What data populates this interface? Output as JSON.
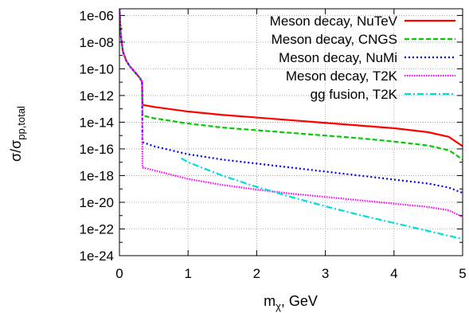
{
  "chart_data": {
    "type": "line",
    "title": "",
    "xlabel": "m",
    "xlabel_sub": "χ",
    "xlabel_suffix": ", GeV",
    "ylabel": "σ/σ",
    "ylabel_sub": "pp,total",
    "xlim": [
      0,
      5
    ],
    "ylim_log10": [
      -24,
      -5.5
    ],
    "y_scale": "log",
    "grid": true,
    "legend_position": "top-right",
    "x_ticks": [
      0,
      1,
      2,
      3,
      4,
      5
    ],
    "x_tick_labels": [
      "0",
      "1",
      "2",
      "3",
      "4",
      "5"
    ],
    "y_ticks_log10": [
      -6,
      -8,
      -10,
      -12,
      -14,
      -16,
      -18,
      -20,
      -22,
      -24
    ],
    "y_tick_labels": [
      "1e-06",
      "1e-08",
      "1e-10",
      "1e-12",
      "1e-14",
      "1e-16",
      "1e-18",
      "1e-20",
      "1e-22",
      "1e-24"
    ],
    "series": [
      {
        "name": "Meson decay, NuTeV",
        "color": "#ff0000",
        "dash": "solid",
        "x": [
          0,
          0.02,
          0.05,
          0.1,
          0.15,
          0.2,
          0.25,
          0.3,
          0.33,
          0.335,
          0.34,
          0.5,
          1,
          1.5,
          2,
          2.5,
          3,
          3.5,
          4,
          4.5,
          4.8,
          5
        ],
        "log10y": [
          -5.5,
          -7.5,
          -8.7,
          -9.4,
          -9.8,
          -10.1,
          -10.4,
          -10.7,
          -11.0,
          -12.5,
          -12.7,
          -12.85,
          -13.2,
          -13.45,
          -13.65,
          -13.85,
          -14.05,
          -14.25,
          -14.45,
          -14.75,
          -15.1,
          -15.8
        ]
      },
      {
        "name": "Meson decay, CNGS",
        "color": "#00cc00",
        "dash": "dashed",
        "x": [
          0,
          0.02,
          0.05,
          0.1,
          0.15,
          0.2,
          0.25,
          0.3,
          0.33,
          0.335,
          0.34,
          0.5,
          1,
          1.5,
          2,
          2.5,
          3,
          3.5,
          4,
          4.5,
          4.8,
          5
        ],
        "log10y": [
          -5.5,
          -7.5,
          -8.7,
          -9.4,
          -9.8,
          -10.1,
          -10.4,
          -10.7,
          -11.0,
          -13.3,
          -13.5,
          -13.7,
          -14.1,
          -14.4,
          -14.6,
          -14.8,
          -15.0,
          -15.2,
          -15.45,
          -15.75,
          -16.1,
          -16.8
        ]
      },
      {
        "name": "Meson decay, NuMi",
        "color": "#0000ff",
        "dash": "dotted",
        "x": [
          0,
          0.02,
          0.05,
          0.1,
          0.15,
          0.2,
          0.25,
          0.3,
          0.33,
          0.335,
          0.34,
          0.5,
          1,
          1.5,
          2,
          2.5,
          3,
          3.5,
          4,
          4.5,
          4.8,
          5
        ],
        "log10y": [
          -5.5,
          -7.5,
          -8.7,
          -9.4,
          -9.8,
          -10.1,
          -10.4,
          -10.7,
          -11.0,
          -15.3,
          -15.5,
          -15.8,
          -16.4,
          -16.8,
          -17.1,
          -17.4,
          -17.7,
          -18.0,
          -18.3,
          -18.6,
          -18.9,
          -19.3
        ]
      },
      {
        "name": "Meson decay, T2K",
        "color": "#ff00ff",
        "dash": "dotted-fine",
        "x": [
          0,
          0.02,
          0.05,
          0.1,
          0.15,
          0.2,
          0.25,
          0.3,
          0.33,
          0.335,
          0.34,
          0.5,
          1,
          1.5,
          2,
          2.5,
          3,
          3.5,
          4,
          4.5,
          4.8,
          5
        ],
        "log10y": [
          -5.5,
          -7.5,
          -8.7,
          -9.4,
          -9.8,
          -10.1,
          -10.4,
          -10.7,
          -11.0,
          -17.2,
          -17.4,
          -17.6,
          -18.25,
          -18.7,
          -19.05,
          -19.35,
          -19.6,
          -19.85,
          -20.1,
          -20.35,
          -20.6,
          -21.1
        ]
      },
      {
        "name": "gg fusion, T2K",
        "color": "#00dddd",
        "dash": "dash-dot",
        "x": [
          0.9,
          1,
          1.5,
          2,
          2.5,
          3,
          3.5,
          4,
          4.5,
          5
        ],
        "log10y": [
          -16.7,
          -17.0,
          -18.0,
          -18.85,
          -19.6,
          -20.3,
          -20.95,
          -21.55,
          -22.15,
          -22.75
        ]
      }
    ]
  }
}
